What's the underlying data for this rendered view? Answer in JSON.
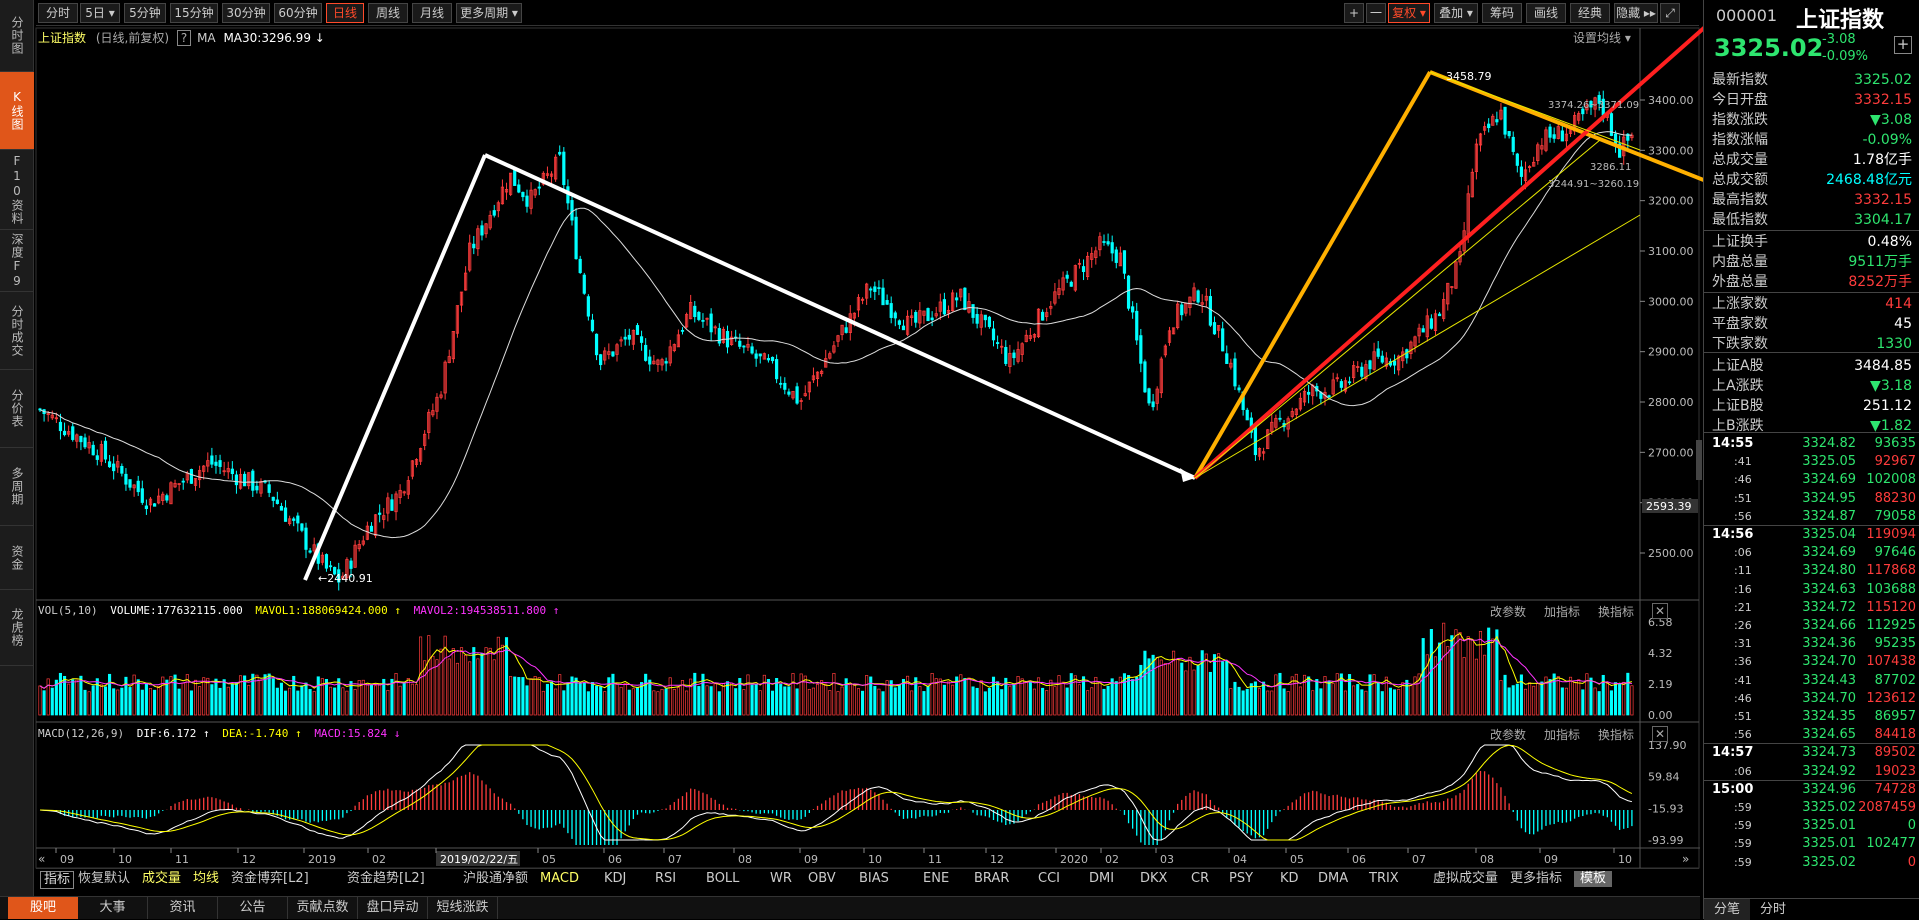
{
  "left_tabs": [
    {
      "label": "分时图",
      "active": false
    },
    {
      "label": "K线图",
      "active": true
    },
    {
      "label": "F10资料",
      "active": false
    },
    {
      "label": "深度F9",
      "active": false
    },
    {
      "label": "分时成交",
      "active": false
    },
    {
      "label": "分价表",
      "active": false
    },
    {
      "label": "多周期",
      "active": false
    },
    {
      "label": "资金",
      "active": false
    },
    {
      "label": "龙虎榜",
      "active": false
    }
  ],
  "period_buttons": [
    "分时",
    "5日 ▾",
    "5分钟",
    "15分钟",
    "30分钟",
    "60分钟",
    "日线",
    "周线",
    "月线",
    "更多周期 ▾"
  ],
  "active_period": "日线",
  "right_tools": [
    "+",
    "一",
    "复权 ▾",
    "叠加 ▾",
    "筹码",
    "画线",
    "经典",
    "隐藏 ▸▸",
    "⤢"
  ],
  "info_line": {
    "name": "上证指数",
    "mode": "(日线,前复权)",
    "help": "?",
    "ma_label": "MA",
    "ma30": "MA30:3296.99 ↓",
    "settings": "设置均线 ▾"
  },
  "price_axis": [
    "3400.00",
    "3300.00",
    "3200.00",
    "3100.00",
    "3000.00",
    "2900.00",
    "2800.00",
    "2700.00",
    "2600.00",
    "2500.00"
  ],
  "price_marker": "2593.39",
  "annotations": {
    "low": "2440.91",
    "high": "3458.79",
    "gap1": "3374.26~3371.09",
    "gap2": "3286.11",
    "gap3": "3244.91~3260.19"
  },
  "vol_panel": {
    "label": "VOL(5,10)",
    "volume": "VOLUME:177632115.000",
    "mavol1": "MAVOL1:188069424.000 ↑",
    "mavol2": "MAVOL2:194538511.800 ↑",
    "axis": [
      "6.58",
      "4.32",
      "2.19",
      "0.00"
    ],
    "buttons": [
      "改参数",
      "加指标",
      "换指标",
      "✕"
    ]
  },
  "macd_panel": {
    "label": "MACD(12,26,9)",
    "dif": "DIF:6.172 ↑",
    "dea": "DEA:-1.740 ↑",
    "macd": "MACD:15.824 ↓",
    "axis": [
      "137.90",
      "59.84",
      "-15.93",
      "-93.99"
    ],
    "buttons": [
      "改参数",
      "加指标",
      "换指标",
      "✕"
    ]
  },
  "date_axis": [
    "09",
    "10",
    "11",
    "12",
    "2019",
    "02",
    "2019/02/22/五",
    "05",
    "06",
    "07",
    "08",
    "09",
    "10",
    "11",
    "12",
    "2020",
    "02",
    "03",
    "04",
    "05",
    "06",
    "07",
    "08",
    "09",
    "10"
  ],
  "indicator_tabs": [
    "指标",
    "恢复默认",
    "成交量",
    "均线",
    "资金博弈[L2]",
    "资金趋势[L2]",
    "沪股通净额",
    "MACD",
    "KDJ",
    "RSI",
    "BOLL",
    "WR",
    "OBV",
    "BIAS",
    "ENE",
    "BRAR",
    "CCI",
    "DMI",
    "DKX",
    "CR",
    "PSY",
    "KD",
    "DMA",
    "TRIX",
    "虚拟成交量",
    "更多指标",
    "模板"
  ],
  "bottom_tabs": [
    "股吧",
    "大事",
    "资讯",
    "公告",
    "贡献点数",
    "盘口异动",
    "短线涨跌"
  ],
  "quote": {
    "code": "000001",
    "name": "上证指数",
    "price": "3325.02",
    "change": "-3.08",
    "change_pct": "-0.09%",
    "add": "+"
  },
  "stats": [
    {
      "k": "最新指数",
      "v": "3325.02",
      "c": "g"
    },
    {
      "k": "今日开盘",
      "v": "3332.15",
      "c": "r"
    },
    {
      "k": "指数涨跌",
      "v": "▼3.08",
      "c": "g"
    },
    {
      "k": "指数涨幅",
      "v": "-0.09%",
      "c": "g"
    },
    {
      "k": "总成交量",
      "v": "1.78亿手",
      "c": "w"
    },
    {
      "k": "总成交额",
      "v": "2468.48亿元",
      "c": "c"
    },
    {
      "k": "最高指数",
      "v": "3332.15",
      "c": "r"
    },
    {
      "k": "最低指数",
      "v": "3304.17",
      "c": "g"
    },
    {
      "k": "上证换手",
      "v": "0.48%",
      "c": "w"
    },
    {
      "k": "内盘总量",
      "v": "9511万手",
      "c": "g"
    },
    {
      "k": "外盘总量",
      "v": "8252万手",
      "c": "r"
    },
    {
      "k": "上涨家数",
      "v": "414",
      "c": "r"
    },
    {
      "k": "平盘家数",
      "v": "45",
      "c": "w"
    },
    {
      "k": "下跌家数",
      "v": "1330",
      "c": "g"
    },
    {
      "k": "上证A股",
      "v": "3484.85",
      "c": "w"
    },
    {
      "k": "上A涨跌",
      "v": "▼3.18",
      "c": "g"
    },
    {
      "k": "上证B股",
      "v": "251.12",
      "c": "w"
    },
    {
      "k": "上B涨跌",
      "v": "▼1.82",
      "c": "g"
    }
  ],
  "ticks": [
    {
      "t": "14:55",
      "p": "3324.82",
      "v": "93635",
      "pc": "g",
      "vc": "g"
    },
    {
      "t": ":41",
      "p": "3325.05",
      "v": "92967",
      "pc": "g",
      "vc": "r"
    },
    {
      "t": ":46",
      "p": "3324.69",
      "v": "102008",
      "pc": "g",
      "vc": "g"
    },
    {
      "t": ":51",
      "p": "3324.95",
      "v": "88230",
      "pc": "g",
      "vc": "r"
    },
    {
      "t": ":56",
      "p": "3324.87",
      "v": "79058",
      "pc": "g",
      "vc": "g"
    },
    {
      "t": "14:56",
      "p": "3325.04",
      "v": "119094",
      "pc": "g",
      "vc": "r"
    },
    {
      "t": ":06",
      "p": "3324.69",
      "v": "97646",
      "pc": "g",
      "vc": "g"
    },
    {
      "t": ":11",
      "p": "3324.80",
      "v": "117868",
      "pc": "g",
      "vc": "r"
    },
    {
      "t": ":16",
      "p": "3324.63",
      "v": "103688",
      "pc": "g",
      "vc": "g"
    },
    {
      "t": ":21",
      "p": "3324.72",
      "v": "115120",
      "pc": "g",
      "vc": "r"
    },
    {
      "t": ":26",
      "p": "3324.66",
      "v": "112925",
      "pc": "g",
      "vc": "g"
    },
    {
      "t": ":31",
      "p": "3324.36",
      "v": "95235",
      "pc": "g",
      "vc": "g"
    },
    {
      "t": ":36",
      "p": "3324.70",
      "v": "107438",
      "pc": "g",
      "vc": "r"
    },
    {
      "t": ":41",
      "p": "3324.43",
      "v": "87702",
      "pc": "g",
      "vc": "g"
    },
    {
      "t": ":46",
      "p": "3324.70",
      "v": "123612",
      "pc": "g",
      "vc": "r"
    },
    {
      "t": ":51",
      "p": "3324.35",
      "v": "86957",
      "pc": "g",
      "vc": "g"
    },
    {
      "t": ":56",
      "p": "3324.65",
      "v": "84418",
      "pc": "g",
      "vc": "r"
    },
    {
      "t": "14:57",
      "p": "3324.73",
      "v": "89502",
      "pc": "g",
      "vc": "r"
    },
    {
      "t": ":06",
      "p": "3324.92",
      "v": "19023",
      "pc": "g",
      "vc": "r"
    },
    {
      "t": "15:00",
      "p": "3324.96",
      "v": "74728",
      "pc": "g",
      "vc": "r"
    },
    {
      "t": ":59",
      "p": "3325.02",
      "v": "2087459",
      "pc": "g",
      "vc": "r"
    },
    {
      "t": ":59",
      "p": "3325.01",
      "v": "0",
      "pc": "g",
      "vc": "g"
    },
    {
      "t": ":59",
      "p": "3325.01",
      "v": "102477",
      "pc": "g",
      "vc": "g"
    },
    {
      "t": ":59",
      "p": "3325.02",
      "v": "0",
      "pc": "g",
      "vc": "r"
    }
  ],
  "right_bottom_tabs": [
    "分笔",
    "分时"
  ],
  "colors": {
    "up": "#ff3c3c",
    "down": "#00ffff",
    "green": "#2ee56f",
    "accent": "#e0561a"
  }
}
